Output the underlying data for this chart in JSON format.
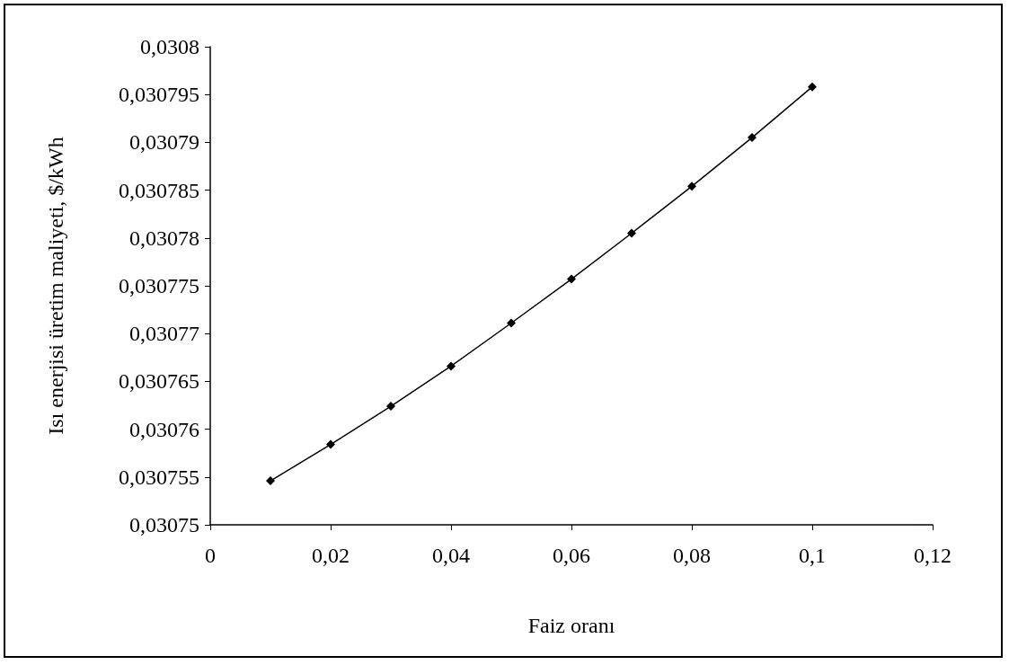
{
  "chart_data": {
    "type": "line",
    "xlabel": "Faiz oranı",
    "ylabel": "Isı enerjisi üretim maliyeti, $/kWh",
    "x": [
      0.01,
      0.02,
      0.03,
      0.04,
      0.05,
      0.06,
      0.07,
      0.08,
      0.09,
      0.1
    ],
    "series": [
      {
        "color": "#000000",
        "values": [
          0.0307546,
          0.0307584,
          0.0307624,
          0.0307666,
          0.0307711,
          0.0307757,
          0.0307805,
          0.0307854,
          0.0307905,
          0.0307958
        ]
      }
    ],
    "xlim": [
      0,
      0.12
    ],
    "xticks": [
      {
        "value": 0,
        "label": "0"
      },
      {
        "value": 0.02,
        "label": "0,02"
      },
      {
        "value": 0.04,
        "label": "0,04"
      },
      {
        "value": 0.06,
        "label": "0,06"
      },
      {
        "value": 0.08,
        "label": "0,08"
      },
      {
        "value": 0.1,
        "label": "0,1"
      },
      {
        "value": 0.12,
        "label": "0,12"
      }
    ],
    "ylim": [
      0.03075,
      0.0308
    ],
    "yticks": [
      {
        "value": 0.03075,
        "label": "0,03075"
      },
      {
        "value": 0.030755,
        "label": "0,030755"
      },
      {
        "value": 0.03076,
        "label": "0,03076"
      },
      {
        "value": 0.030765,
        "label": "0,030765"
      },
      {
        "value": 0.03077,
        "label": "0,03077"
      },
      {
        "value": 0.030775,
        "label": "0,030775"
      },
      {
        "value": 0.03078,
        "label": "0,03078"
      },
      {
        "value": 0.030785,
        "label": "0,030785"
      },
      {
        "value": 0.03079,
        "label": "0,03079"
      },
      {
        "value": 0.030795,
        "label": "0,030795"
      },
      {
        "value": 0.0308,
        "label": "0,0308"
      }
    ],
    "grid": false,
    "marker": "diamond",
    "line_style": "solid"
  }
}
